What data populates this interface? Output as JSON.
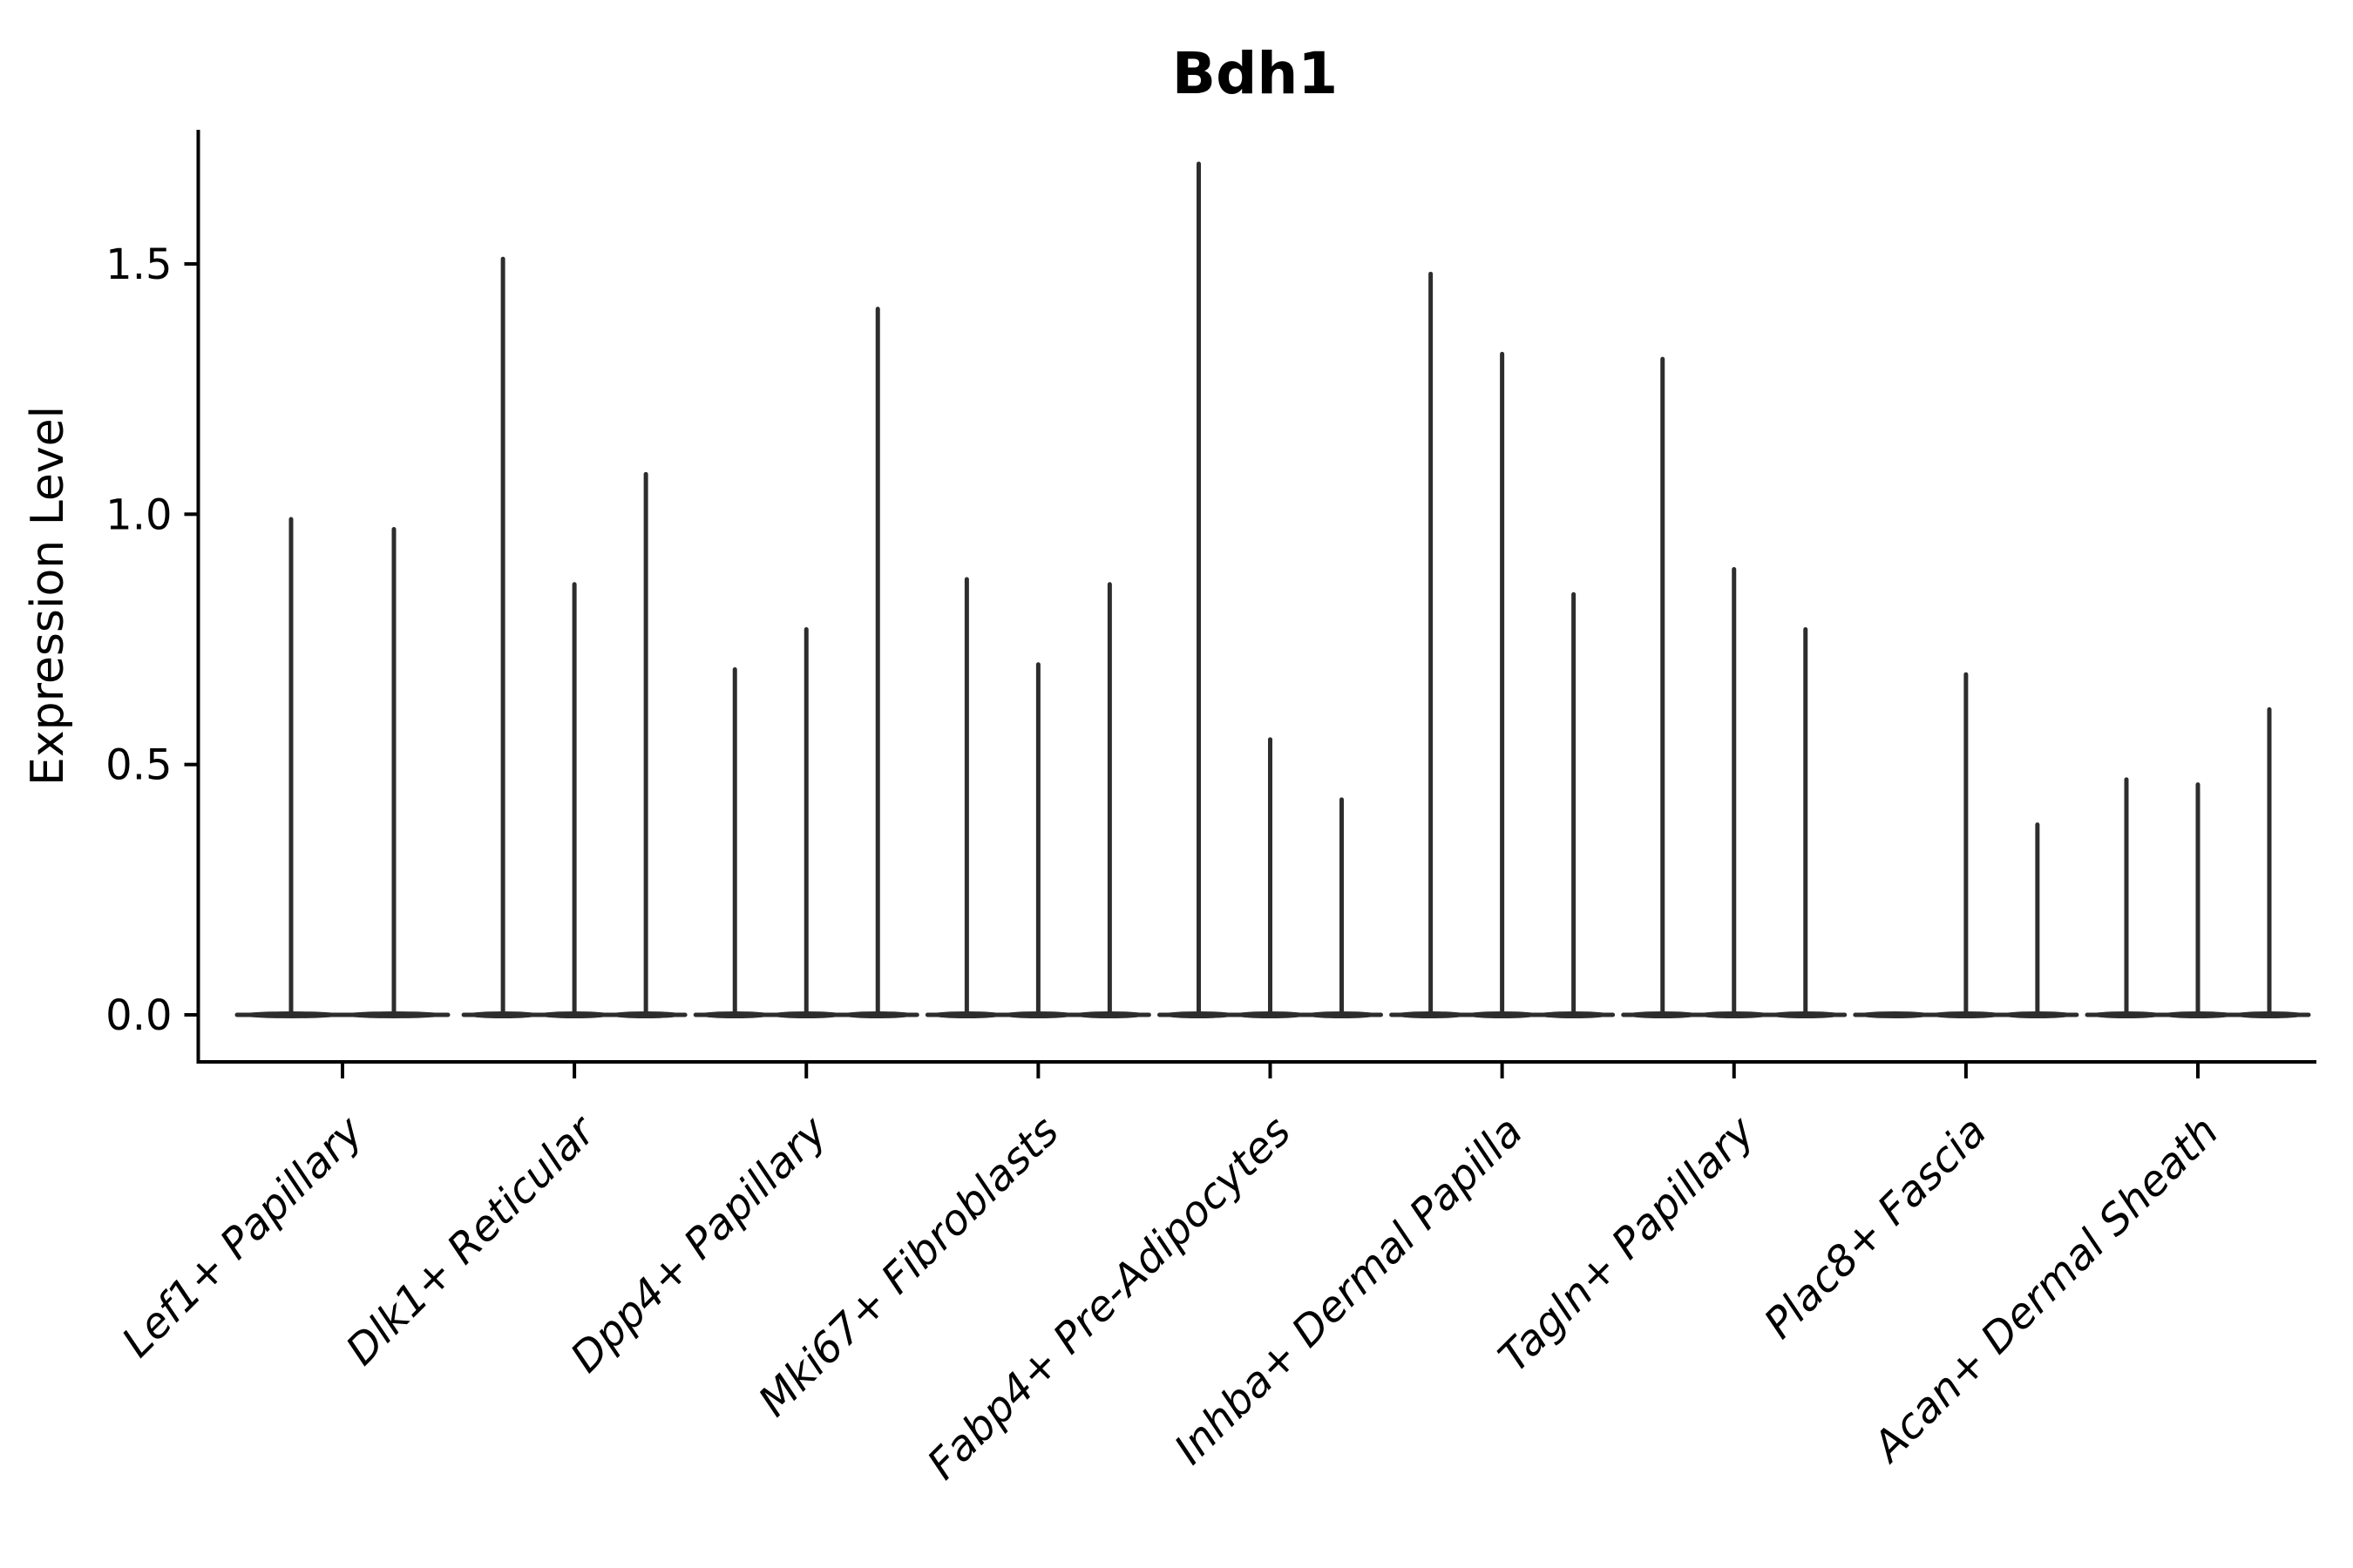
{
  "chart_data": {
    "type": "violin",
    "title": "Bdh1",
    "ylabel": "Expression Level",
    "xlabel": "",
    "ylim": [
      -0.09,
      1.77
    ],
    "yticks": [
      0.0,
      0.5,
      1.0,
      1.5
    ],
    "ytick_labels": [
      "0.0",
      "0.5",
      "1.0",
      "1.5"
    ],
    "grid": "off",
    "legend": "none",
    "categories": [
      "Lef1+ Papillary",
      "Dlk1+ Reticular",
      "Dpp4+ Papillary",
      "Mki67+ Fibroblasts",
      "Fabp4+ Pre-Adipocytes",
      "Inhba+ Dermal Papilla",
      "Tagln+ Papillary",
      "Plac8+ Fascia",
      "Acan+ Dermal Sheath"
    ],
    "series": [
      {
        "category": "Lef1+ Papillary",
        "violin_max_values": [
          0.99,
          0.97
        ]
      },
      {
        "category": "Dlk1+ Reticular",
        "violin_max_values": [
          1.51,
          0.86,
          1.08
        ]
      },
      {
        "category": "Dpp4+ Papillary",
        "violin_max_values": [
          0.69,
          0.77,
          1.41
        ]
      },
      {
        "category": "Mki67+ Fibroblasts",
        "violin_max_values": [
          0.87,
          0.7,
          0.86
        ]
      },
      {
        "category": "Fabp4+ Pre-Adipocytes",
        "violin_max_values": [
          1.7,
          0.55,
          0.43
        ]
      },
      {
        "category": "Inhba+ Dermal Papilla",
        "violin_max_values": [
          1.48,
          1.32,
          0.84
        ]
      },
      {
        "category": "Tagln+ Papillary",
        "violin_max_values": [
          1.31,
          0.89,
          0.77
        ]
      },
      {
        "category": "Plac8+ Fascia",
        "violin_max_values": [
          0.0,
          0.68,
          0.38
        ]
      },
      {
        "category": "Acan+ Dermal Sheath",
        "violin_max_values": [
          0.47,
          0.46,
          0.61
        ]
      }
    ],
    "colors": {
      "violin": "#2d2d2d",
      "axis": "#000000",
      "background": "#ffffff",
      "text": "#000000"
    },
    "style_notes": "Sparse single-cell expression violins: each violin is a flat base at 0 with a thin vertical density spike; x tick labels rotated 45 degrees, italic; top/right spines removed."
  }
}
